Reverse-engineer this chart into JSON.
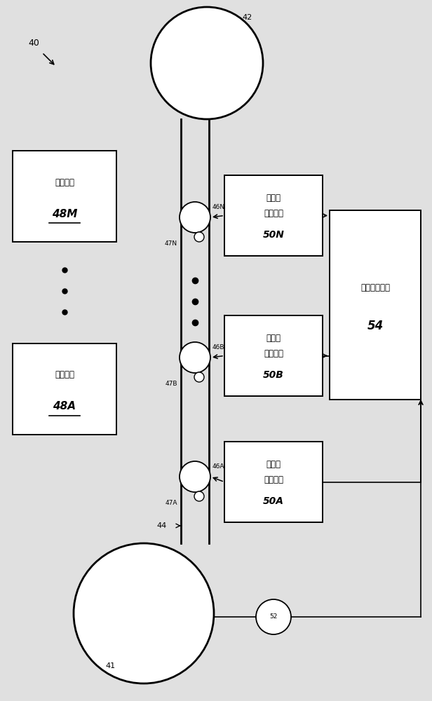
{
  "bg_color": "#e0e0e0",
  "fig_width": 6.16,
  "fig_height": 10.0,
  "dpi": 100,
  "web_bg": "#f5f5f5",
  "label_40": "40",
  "label_41": "41",
  "label_42": "42",
  "label_44": "44",
  "label_46A": "46A",
  "label_46B": "46B",
  "label_46N": "46N",
  "label_47A": "47A",
  "label_47B": "47B",
  "label_47N": "47N",
  "label_48A_top": "制各部件",
  "label_48A_num": "48A",
  "label_48M_top": "制各部件",
  "label_48M_num": "48M",
  "label_50A_l1": "同步标",
  "label_50A_l2": "记读出器",
  "label_50A_num": "50A",
  "label_50B_l1": "同步标",
  "label_50B_l2": "记读出器",
  "label_50B_num": "50B",
  "label_50N_l1": "同步标",
  "label_50N_l2": "记读出器",
  "label_50N_num": "50N",
  "label_52": "52",
  "label_54_l1": "远程同步单元",
  "label_54_num": "54"
}
